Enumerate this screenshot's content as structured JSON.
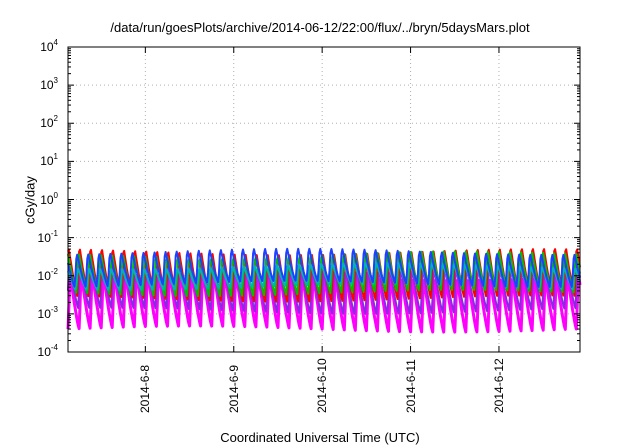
{
  "chart_data": {
    "type": "line",
    "title": "/data/run/goesPlots/archive/2014-06-12/22:00/flux/../bryn/5daysMars.plot",
    "xlabel": "Coordinated Universal Time (UTC)",
    "ylabel": "cGy/day",
    "yscale": "log",
    "ylim": [
      0.0001,
      10000
    ],
    "xlim": [
      "2014-06-07 03:00",
      "2014-06-12 22:00"
    ],
    "grid": true,
    "y_ticks": [
      {
        "base": "10",
        "exp": "-4",
        "value": 0.0001
      },
      {
        "base": "10",
        "exp": "-3",
        "value": 0.001
      },
      {
        "base": "10",
        "exp": "-2",
        "value": 0.01
      },
      {
        "base": "10",
        "exp": "-1",
        "value": 0.1
      },
      {
        "base": "10",
        "exp": "0",
        "value": 1
      },
      {
        "base": "10",
        "exp": "1",
        "value": 10
      },
      {
        "base": "10",
        "exp": "2",
        "value": 100
      },
      {
        "base": "10",
        "exp": "3",
        "value": 1000
      },
      {
        "base": "10",
        "exp": "4",
        "value": 10000
      }
    ],
    "x_ticks": [
      "2014-6-8",
      "2014-6-9",
      "2014-6-10",
      "2014-6-11",
      "2014-6-12"
    ],
    "x_tick_dates": [
      "2014-06-08 00:00",
      "2014-06-09 00:00",
      "2014-06-10 00:00",
      "2014-06-11 00:00",
      "2014-06-12 00:00"
    ],
    "oscillation_period_hours": 3,
    "series": [
      {
        "color": "#ff00ff",
        "peak": 0.012,
        "trough": 0.0004
      },
      {
        "color": "#8a2be2",
        "peak": 0.02,
        "trough": 0.0012
      },
      {
        "color": "#ff0000",
        "peak": 0.055,
        "trough": 0.0025
      },
      {
        "color": "#00c000",
        "peak": 0.045,
        "trough": 0.0035
      },
      {
        "color": "#00b4b4",
        "peak": 0.02,
        "trough": 0.005
      },
      {
        "color": "#2040ff",
        "peak": 0.05,
        "trough": 0.006
      }
    ]
  }
}
